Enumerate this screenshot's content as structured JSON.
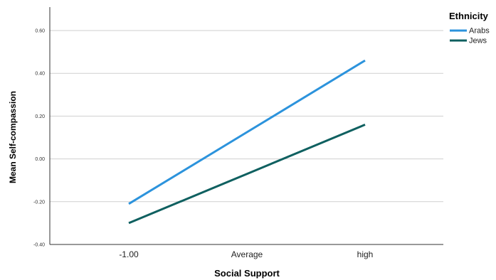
{
  "chart_data": {
    "type": "line",
    "title": "",
    "xlabel": "Social Support",
    "ylabel": "Mean Self-compassion",
    "categories": [
      "-1.00",
      "Average",
      "high"
    ],
    "yticks": [
      -0.4,
      -0.2,
      0.0,
      0.2,
      0.4,
      0.6
    ],
    "ytick_labels": [
      "-0.40",
      "-0.20",
      "0.00",
      "0.20",
      "0.40",
      "0.60"
    ],
    "ylim": [
      -0.4,
      0.7
    ],
    "grid": true,
    "legend": {
      "title": "Ethnicity",
      "position": "top-right"
    },
    "series": [
      {
        "name": "Arabs",
        "color": "#2C93DC",
        "values": [
          -0.21,
          0.125,
          0.46
        ]
      },
      {
        "name": "Jews",
        "color": "#0F6060",
        "values": [
          -0.3,
          -0.07,
          0.16
        ]
      }
    ]
  }
}
